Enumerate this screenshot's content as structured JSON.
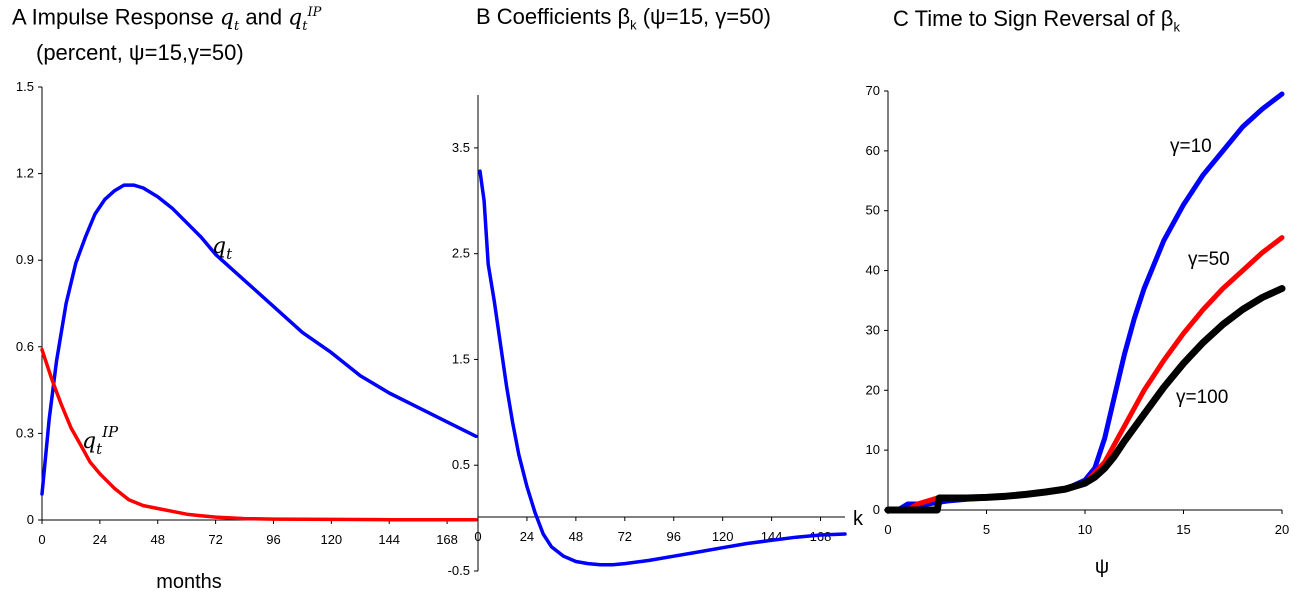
{
  "titles": {
    "a_line1_prefix": "A  Impulse Response ",
    "a_q": "q",
    "a_t": "t",
    "a_and": " and ",
    "a_ip": "IP",
    "a_line2": "(percent, ψ=15,γ=50)",
    "b_prefix": "B  Coefficients β",
    "b_sub": "k",
    "b_suffix": " (ψ=15, γ=50)",
    "c_prefix": "C  Time to Sign Reversal of β",
    "c_sub": "k"
  },
  "chart_data": [
    {
      "panel": "A",
      "type": "line",
      "xlabel": "months",
      "ylabel": "",
      "xlim": [
        0,
        180
      ],
      "ylim": [
        0,
        1.5
      ],
      "xticks": [
        "0",
        "24",
        "48",
        "72",
        "96",
        "120",
        "144",
        "168"
      ],
      "yticks": [
        "0",
        "0.3",
        "0.6",
        "0.9",
        "1.2",
        "1.5"
      ],
      "annotations": [
        "q_t",
        "q_t^IP"
      ],
      "series": [
        {
          "name": "q_t",
          "color": "#0000ff",
          "x": [
            0,
            3,
            6,
            10,
            14,
            18,
            22,
            26,
            30,
            34,
            38,
            42,
            48,
            54,
            60,
            66,
            72,
            84,
            96,
            108,
            120,
            132,
            144,
            156,
            168,
            180
          ],
          "y": [
            0.09,
            0.35,
            0.55,
            0.75,
            0.89,
            0.98,
            1.06,
            1.11,
            1.14,
            1.16,
            1.16,
            1.15,
            1.12,
            1.08,
            1.03,
            0.98,
            0.92,
            0.83,
            0.74,
            0.65,
            0.58,
            0.5,
            0.44,
            0.39,
            0.34,
            0.29
          ]
        },
        {
          "name": "q_t^IP",
          "color": "#ff0000",
          "x": [
            0,
            4,
            8,
            12,
            16,
            20,
            24,
            30,
            36,
            42,
            48,
            54,
            60,
            66,
            72,
            84,
            96,
            120,
            144,
            168,
            180
          ],
          "y": [
            0.59,
            0.49,
            0.4,
            0.32,
            0.26,
            0.2,
            0.16,
            0.11,
            0.07,
            0.05,
            0.04,
            0.03,
            0.02,
            0.015,
            0.01,
            0.005,
            0.003,
            0.002,
            0.001,
            0.001,
            0.001
          ]
        }
      ]
    },
    {
      "panel": "B",
      "type": "line",
      "xlabel": "k",
      "ylabel": "",
      "xlim": [
        0,
        180
      ],
      "ylim": [
        -0.5,
        4.0
      ],
      "xticks": [
        "0",
        "24",
        "48",
        "72",
        "96",
        "120",
        "144",
        "168"
      ],
      "yticks": [
        "-0.5",
        "0.5",
        "1.5",
        "2.5",
        "3.5"
      ],
      "series": [
        {
          "name": "",
          "color": "#0000ff",
          "x": [
            1,
            3,
            5,
            8,
            11,
            14,
            17,
            20,
            24,
            28,
            32,
            36,
            42,
            48,
            54,
            60,
            66,
            72,
            84,
            96,
            108,
            120,
            132,
            144,
            156,
            168,
            180
          ],
          "y": [
            3.28,
            3.0,
            2.4,
            2.05,
            1.65,
            1.25,
            0.9,
            0.6,
            0.3,
            0.05,
            -0.15,
            -0.27,
            -0.36,
            -0.41,
            -0.43,
            -0.44,
            -0.44,
            -0.43,
            -0.4,
            -0.36,
            -0.32,
            -0.28,
            -0.24,
            -0.21,
            -0.18,
            -0.16,
            -0.15
          ]
        }
      ]
    },
    {
      "panel": "C",
      "type": "line",
      "xlabel": "ψ",
      "ylabel": "",
      "xlim": [
        0,
        20
      ],
      "ylim": [
        0,
        70
      ],
      "xticks": [
        "0",
        "5",
        "10",
        "15",
        "20"
      ],
      "yticks": [
        "0",
        "10",
        "20",
        "30",
        "40",
        "50",
        "60",
        "70"
      ],
      "series": [
        {
          "name": "γ=10",
          "color": "#0000ff",
          "x": [
            0,
            0.5,
            1,
            2,
            3,
            4,
            5,
            6,
            7,
            8,
            9,
            10,
            10.5,
            11,
            11.5,
            12,
            12.5,
            13,
            14,
            15,
            16,
            17,
            18,
            19,
            20
          ],
          "y": [
            0,
            0,
            1,
            1,
            1.5,
            1.8,
            2,
            2.2,
            2.5,
            3,
            3.5,
            5,
            7,
            12,
            19,
            26,
            32,
            37,
            45,
            51,
            56,
            60,
            64,
            67,
            69.5
          ]
        },
        {
          "name": "γ=50",
          "color": "#ff0000",
          "x": [
            0,
            1,
            1.5,
            2,
            2.5,
            3,
            4,
            5,
            6,
            7,
            8,
            9,
            10,
            11,
            12,
            13,
            14,
            15,
            16,
            17,
            18,
            19,
            20
          ],
          "y": [
            0,
            0,
            1,
            1.5,
            2,
            2,
            2,
            2.2,
            2.4,
            2.7,
            3,
            3.5,
            4.5,
            8,
            14,
            20,
            25,
            29.5,
            33.5,
            37,
            40,
            43,
            45.5
          ]
        },
        {
          "name": "γ=100",
          "color": "#000000",
          "x": [
            0,
            1,
            2,
            2.5,
            2.6,
            3,
            4,
            5,
            6,
            7,
            8,
            9,
            10,
            10.5,
            11,
            11.5,
            12,
            13,
            14,
            15,
            16,
            17,
            18,
            19,
            20
          ],
          "y": [
            0,
            0,
            0,
            0,
            2,
            2,
            2,
            2.1,
            2.3,
            2.6,
            3,
            3.5,
            4.5,
            5.5,
            7,
            9,
            11.5,
            16,
            20.5,
            24.5,
            28,
            31,
            33.5,
            35.5,
            37
          ]
        }
      ]
    }
  ]
}
